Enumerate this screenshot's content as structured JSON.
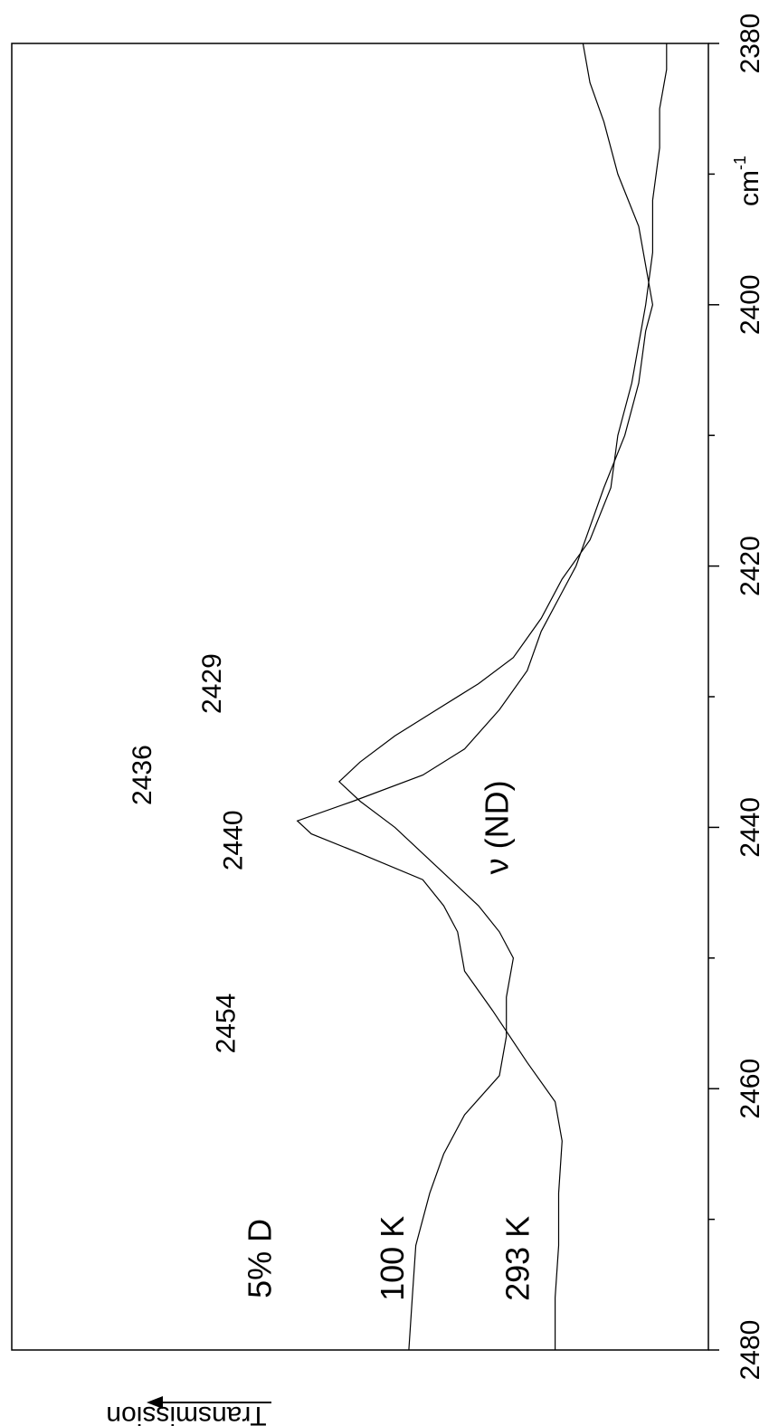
{
  "chart_data": {
    "type": "line",
    "orientation": "rotated-90-ccw",
    "xlabel": "cm⁻¹",
    "xunit_base": "cm",
    "xunit_sup": "-1",
    "ylabel": "Transmission",
    "xlim": [
      2480,
      2380
    ],
    "x_ticks_major": [
      2480,
      2460,
      2440,
      2420,
      2400,
      2380
    ],
    "x_ticks_minor": [
      2470,
      2450,
      2430,
      2410,
      2390
    ],
    "grid": false,
    "legend": "none",
    "series": [
      {
        "name": "293 K",
        "points": [
          [
            2480,
            0.78
          ],
          [
            2476,
            0.78
          ],
          [
            2472,
            0.785
          ],
          [
            2468,
            0.785
          ],
          [
            2464,
            0.79
          ],
          [
            2461,
            0.78
          ],
          [
            2458,
            0.74
          ],
          [
            2454,
            0.69
          ],
          [
            2451,
            0.65
          ],
          [
            2448,
            0.64
          ],
          [
            2446,
            0.62
          ],
          [
            2444,
            0.59
          ],
          [
            2442,
            0.5
          ],
          [
            2440.5,
            0.43
          ],
          [
            2439.5,
            0.41
          ],
          [
            2438,
            0.49
          ],
          [
            2436,
            0.59
          ],
          [
            2434,
            0.65
          ],
          [
            2431,
            0.7
          ],
          [
            2428,
            0.74
          ],
          [
            2425,
            0.76
          ],
          [
            2422,
            0.79
          ],
          [
            2420,
            0.81
          ],
          [
            2417,
            0.83
          ],
          [
            2414,
            0.85
          ],
          [
            2410,
            0.88
          ],
          [
            2406,
            0.9
          ],
          [
            2402,
            0.91
          ],
          [
            2400,
            0.92
          ],
          [
            2397,
            0.91
          ],
          [
            2394,
            0.9
          ],
          [
            2390,
            0.87
          ],
          [
            2386,
            0.85
          ],
          [
            2383,
            0.83
          ],
          [
            2380,
            0.82
          ]
        ]
      },
      {
        "name": "100 K",
        "points": [
          [
            2480,
            0.57
          ],
          [
            2476,
            0.575
          ],
          [
            2472,
            0.58
          ],
          [
            2468,
            0.6
          ],
          [
            2465,
            0.62
          ],
          [
            2462,
            0.65
          ],
          [
            2459,
            0.7
          ],
          [
            2456,
            0.71
          ],
          [
            2453,
            0.71
          ],
          [
            2450,
            0.72
          ],
          [
            2448,
            0.7
          ],
          [
            2446,
            0.67
          ],
          [
            2443,
            0.61
          ],
          [
            2440,
            0.55
          ],
          [
            2438,
            0.5
          ],
          [
            2436.5,
            0.47
          ],
          [
            2435,
            0.5
          ],
          [
            2433,
            0.55
          ],
          [
            2431,
            0.61
          ],
          [
            2429,
            0.67
          ],
          [
            2427,
            0.72
          ],
          [
            2424,
            0.76
          ],
          [
            2421,
            0.79
          ],
          [
            2418,
            0.83
          ],
          [
            2414,
            0.86
          ],
          [
            2410,
            0.87
          ],
          [
            2406,
            0.89
          ],
          [
            2403,
            0.9
          ],
          [
            2400,
            0.91
          ],
          [
            2396,
            0.92
          ],
          [
            2392,
            0.92
          ],
          [
            2388,
            0.93
          ],
          [
            2385,
            0.93
          ],
          [
            2382,
            0.94
          ],
          [
            2380,
            0.94
          ]
        ]
      }
    ],
    "annotations": [
      {
        "text": "293 K",
        "x": 2473,
        "y": 0.73
      },
      {
        "text": "100 K",
        "x": 2473,
        "y": 0.55
      },
      {
        "text": "5% D",
        "x": 2473,
        "y": 0.36
      },
      {
        "text": "ν (ND)",
        "x": 2440,
        "y": 0.7
      },
      {
        "text": "2440",
        "x": 2441,
        "y": 0.32
      },
      {
        "text": "2454",
        "x": 2455,
        "y": 0.31
      },
      {
        "text": "2436",
        "x": 2436,
        "y": 0.19
      },
      {
        "text": "2429",
        "x": 2429,
        "y": 0.29
      }
    ]
  }
}
